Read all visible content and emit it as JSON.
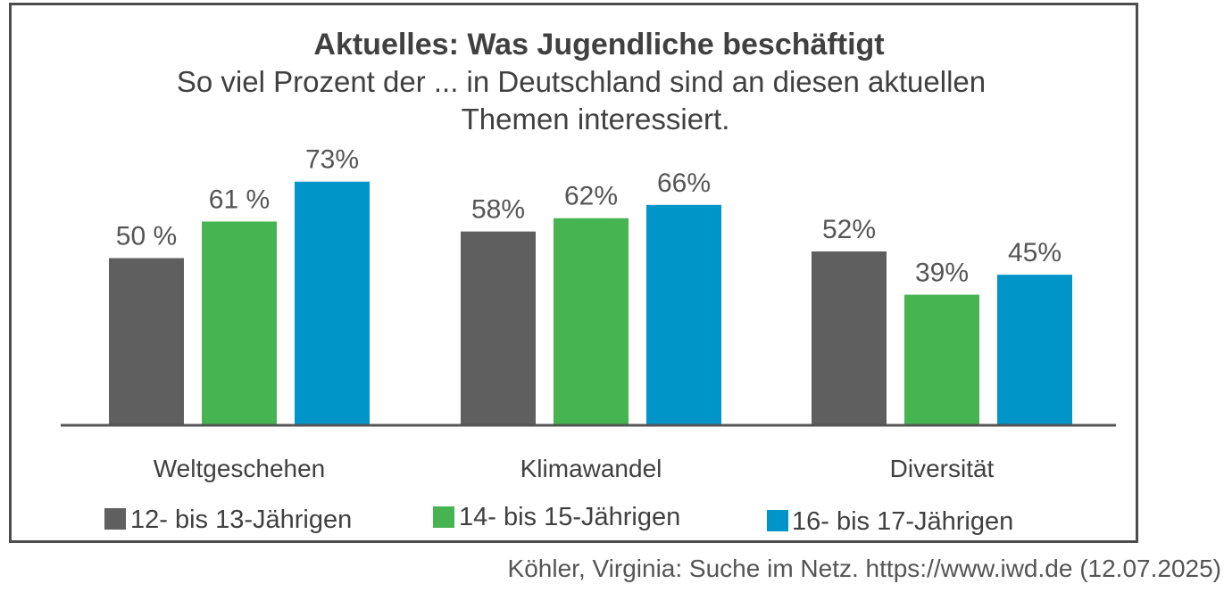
{
  "chart_data": {
    "type": "bar",
    "title": "Aktuelles: Was Jugendliche beschäftigt",
    "subtitle_lines": [
      "So viel Prozent der ... in Deutschland sind an diesen aktuellen",
      "Themen interessiert."
    ],
    "categories": [
      "Weltgeschehen",
      "Klimawandel",
      "Diversität"
    ],
    "series": [
      {
        "name": "12- bis 13-Jährigen",
        "color": "#5f5f5f",
        "values": [
          50,
          58,
          52
        ],
        "labels": [
          "50 %",
          "58%",
          "52%"
        ]
      },
      {
        "name": "14- bis 15-Jährigen",
        "color": "#46b450",
        "values": [
          61,
          62,
          39
        ],
        "labels": [
          "61 %",
          "62%",
          "39%"
        ]
      },
      {
        "name": "16- bis 17-Jährigen",
        "color": "#0095c8",
        "values": [
          73,
          66,
          45
        ],
        "labels": [
          "73%",
          "66%",
          "45%"
        ]
      }
    ],
    "ylim": [
      0,
      100
    ],
    "xlabel": "",
    "ylabel": "",
    "grid": false,
    "legend_position": "bottom"
  },
  "source": "Köhler, Virginia: Suche im Netz. https://www.iwd.de (12.07.2025)"
}
